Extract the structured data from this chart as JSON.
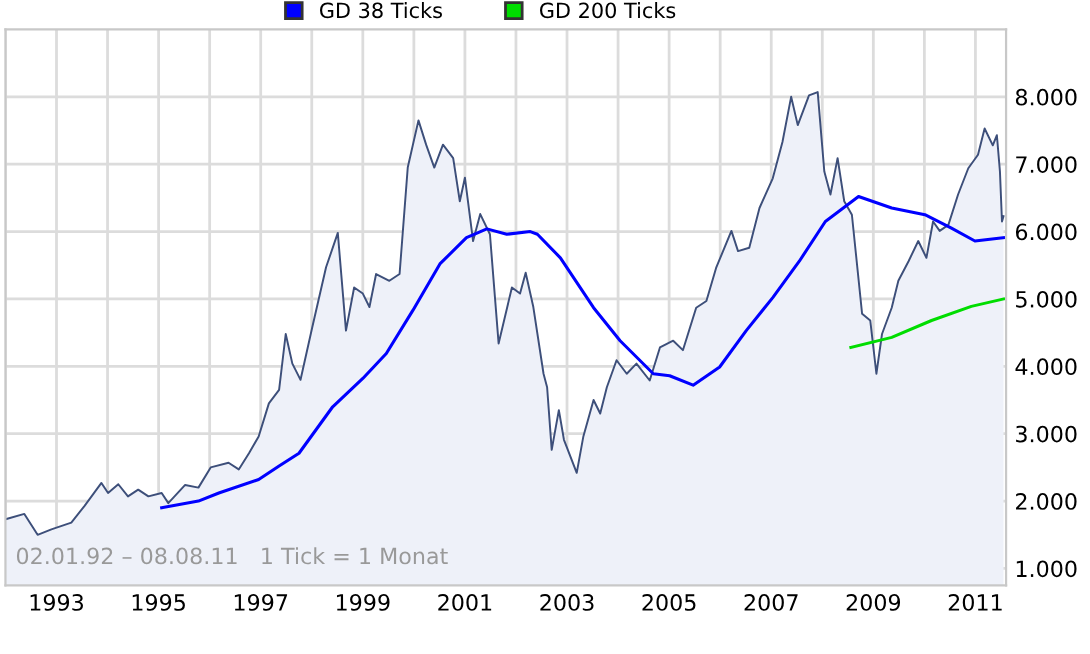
{
  "chart_data": {
    "type": "line",
    "legend": "top",
    "grid": true,
    "xlim": [
      1992.0,
      2011.6
    ],
    "ylim": [
      750,
      9000
    ],
    "xticks": [
      {
        "value": 1992,
        "label": null
      },
      1993,
      {
        "value": 1994,
        "label": null
      },
      1995,
      {
        "value": 1996,
        "label": null
      },
      1997,
      {
        "value": 1998,
        "label": null
      },
      1999,
      {
        "value": 2000,
        "label": null
      },
      2001,
      {
        "value": 2002,
        "label": null
      },
      2003,
      {
        "value": 2004,
        "label": null
      },
      2005,
      {
        "value": 2006,
        "label": null
      },
      2007,
      {
        "value": 2008,
        "label": null
      },
      2009,
      {
        "value": 2010,
        "label": null
      },
      2011
    ],
    "yticks": [
      {
        "value": 1000,
        "label": "1.000"
      },
      {
        "value": 2000,
        "label": "2.000"
      },
      {
        "value": 3000,
        "label": "3.000"
      },
      {
        "value": 4000,
        "label": "4.000"
      },
      {
        "value": 5000,
        "label": "5.000"
      },
      {
        "value": 6000,
        "label": "6.000"
      },
      {
        "value": 7000,
        "label": "7.000"
      },
      {
        "value": 8000,
        "label": "8.000"
      }
    ],
    "annotations": [
      "02.01.92 – 08.08.11   1 Tick = 1 Monat"
    ],
    "series": [
      {
        "type": "area",
        "color": "#3d4f7a",
        "x": [
          1992.0,
          1992.37,
          1992.63,
          1992.9,
          1993.29,
          1993.55,
          1993.88,
          1994.01,
          1994.21,
          1994.4,
          1994.6,
          1994.8,
          1995.06,
          1995.19,
          1995.52,
          1995.78,
          1996.02,
          1996.37,
          1996.57,
          1996.77,
          1996.96,
          1997.16,
          1997.36,
          1997.49,
          1997.62,
          1997.78,
          1998.01,
          1998.28,
          1998.51,
          1998.67,
          1998.83,
          1999.0,
          1999.13,
          1999.26,
          1999.52,
          1999.72,
          1999.88,
          2000.09,
          2000.24,
          2000.4,
          2000.57,
          2000.77,
          2000.9,
          2001.0,
          2001.16,
          2001.3,
          2001.49,
          2001.66,
          2001.92,
          2002.08,
          2002.19,
          2002.34,
          2002.54,
          2002.61,
          2002.7,
          2002.84,
          2002.94,
          2003.19,
          2003.32,
          2003.52,
          2003.65,
          2003.78,
          2003.97,
          2004.17,
          2004.36,
          2004.62,
          2004.82,
          2005.08,
          2005.27,
          2005.53,
          2005.73,
          2005.92,
          2006.22,
          2006.35,
          2006.57,
          2006.77,
          2007.03,
          2007.22,
          2007.39,
          2007.52,
          2007.74,
          2007.91,
          2008.04,
          2008.16,
          2008.3,
          2008.43,
          2008.58,
          2008.78,
          2008.94,
          2009.06,
          2009.17,
          2009.36,
          2009.49,
          2009.69,
          2009.88,
          2010.04,
          2010.17,
          2010.3,
          2010.47,
          2010.66,
          2010.86,
          2011.05,
          2011.18,
          2011.34,
          2011.42,
          2011.48,
          2011.52,
          2011.55
        ],
        "values": [
          1730,
          1810,
          1500,
          1580,
          1680,
          1930,
          2270,
          2120,
          2250,
          2070,
          2170,
          2070,
          2120,
          1970,
          2240,
          2200,
          2500,
          2570,
          2470,
          2710,
          2960,
          3450,
          3650,
          4480,
          4040,
          3800,
          4580,
          5470,
          5980,
          4530,
          5170,
          5080,
          4880,
          5370,
          5270,
          5370,
          6950,
          7650,
          7290,
          6950,
          7290,
          7090,
          6450,
          6800,
          5860,
          6260,
          5960,
          4340,
          5170,
          5080,
          5390,
          4880,
          3890,
          3690,
          2760,
          3350,
          2910,
          2420,
          2960,
          3500,
          3300,
          3690,
          4090,
          3890,
          4040,
          3790,
          4280,
          4380,
          4240,
          4870,
          4970,
          5460,
          6010,
          5710,
          5760,
          6350,
          6790,
          7330,
          8000,
          7580,
          8020,
          8070,
          6890,
          6550,
          7090,
          6450,
          6250,
          4780,
          4680,
          3890,
          4480,
          4870,
          5270,
          5560,
          5860,
          5610,
          6150,
          6010,
          6100,
          6550,
          6940,
          7140,
          7530,
          7280,
          7430,
          6890,
          6150,
          6230
        ]
      },
      {
        "name": "GD 38 Ticks",
        "color": "#0000ff",
        "x": [
          1995.06,
          1995.78,
          1996.18,
          1996.96,
          1997.36,
          1997.75,
          1998.41,
          1999.0,
          1999.46,
          1999.98,
          2000.51,
          2001.03,
          2001.43,
          2001.82,
          2002.28,
          2002.42,
          2002.87,
          2003.52,
          2004.04,
          2004.69,
          2005.01,
          2005.47,
          2005.99,
          2006.51,
          2007.03,
          2007.55,
          2008.06,
          2008.71,
          2009.36,
          2010.01,
          2010.53,
          2010.99,
          2011.55
        ],
        "values": [
          1900,
          2000,
          2120,
          2320,
          2520,
          2710,
          3400,
          3820,
          4190,
          4830,
          5520,
          5910,
          6040,
          5960,
          6000,
          5960,
          5610,
          4870,
          4380,
          3890,
          3860,
          3720,
          3990,
          4530,
          5020,
          5560,
          6150,
          6520,
          6350,
          6250,
          6050,
          5860,
          5910
        ]
      },
      {
        "name": "GD 200 Ticks",
        "color": "#00dd00",
        "x": [
          2008.56,
          2009.36,
          2010.14,
          2010.92,
          2011.55
        ],
        "values": [
          4280,
          4430,
          4680,
          4890,
          5000
        ]
      }
    ]
  }
}
